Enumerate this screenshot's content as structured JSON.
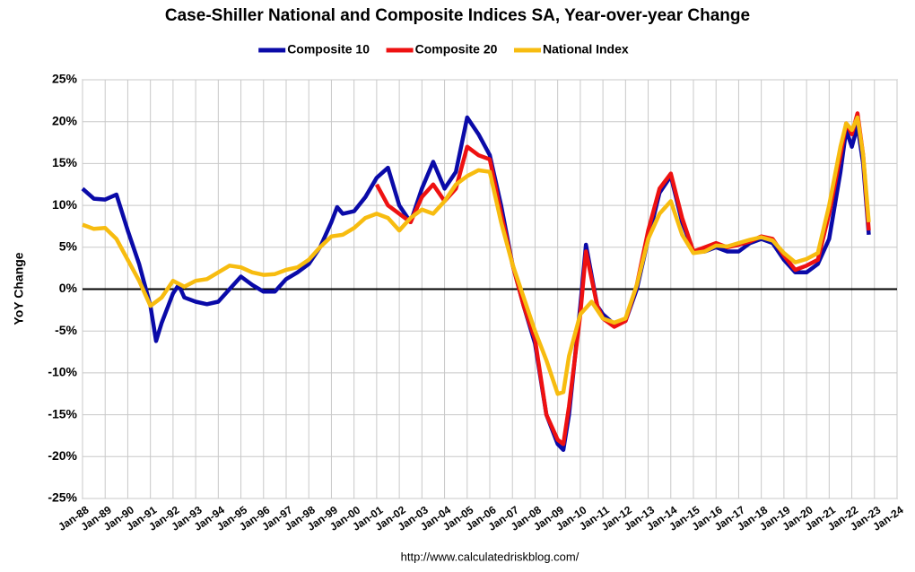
{
  "chart_data": {
    "type": "line",
    "title": "Case-Shiller National and Composite Indices SA, Year-over-year Change",
    "y_label": "YoY Change",
    "source": "http://www.calculatedriskblog.com/",
    "grid": true,
    "legend": "top",
    "xlim": [
      1988,
      2024
    ],
    "ylim": [
      -25,
      25
    ],
    "xticks": [
      {
        "value": 1988,
        "label": "Jan-88"
      },
      {
        "value": 1989,
        "label": "Jan-89"
      },
      {
        "value": 1990,
        "label": "Jan-90"
      },
      {
        "value": 1991,
        "label": "Jan-91"
      },
      {
        "value": 1992,
        "label": "Jan-92"
      },
      {
        "value": 1993,
        "label": "Jan-93"
      },
      {
        "value": 1994,
        "label": "Jan-94"
      },
      {
        "value": 1995,
        "label": "Jan-95"
      },
      {
        "value": 1996,
        "label": "Jan-96"
      },
      {
        "value": 1997,
        "label": "Jan-97"
      },
      {
        "value": 1998,
        "label": "Jan-98"
      },
      {
        "value": 1999,
        "label": "Jan-99"
      },
      {
        "value": 2000,
        "label": "Jan-00"
      },
      {
        "value": 2001,
        "label": "Jan-01"
      },
      {
        "value": 2002,
        "label": "Jan-02"
      },
      {
        "value": 2003,
        "label": "Jan-03"
      },
      {
        "value": 2004,
        "label": "Jan-04"
      },
      {
        "value": 2005,
        "label": "Jan-05"
      },
      {
        "value": 2006,
        "label": "Jan-06"
      },
      {
        "value": 2007,
        "label": "Jan-07"
      },
      {
        "value": 2008,
        "label": "Jan-08"
      },
      {
        "value": 2009,
        "label": "Jan-09"
      },
      {
        "value": 2010,
        "label": "Jan-10"
      },
      {
        "value": 2011,
        "label": "Jan-11"
      },
      {
        "value": 2012,
        "label": "Jan-12"
      },
      {
        "value": 2013,
        "label": "Jan-13"
      },
      {
        "value": 2014,
        "label": "Jan-14"
      },
      {
        "value": 2015,
        "label": "Jan-15"
      },
      {
        "value": 2016,
        "label": "Jan-16"
      },
      {
        "value": 2017,
        "label": "Jan-17"
      },
      {
        "value": 2018,
        "label": "Jan-18"
      },
      {
        "value": 2019,
        "label": "Jan-19"
      },
      {
        "value": 2020,
        "label": "Jan-20"
      },
      {
        "value": 2021,
        "label": "Jan-21"
      },
      {
        "value": 2022,
        "label": "Jan-22"
      },
      {
        "value": 2023,
        "label": "Jan-23"
      },
      {
        "value": 2024,
        "label": "Jan-24"
      }
    ],
    "yticks": [
      {
        "value": 25,
        "label": "25%"
      },
      {
        "value": 20,
        "label": "20%"
      },
      {
        "value": 15,
        "label": "15%"
      },
      {
        "value": 10,
        "label": "10%"
      },
      {
        "value": 5,
        "label": "5%"
      },
      {
        "value": 0,
        "label": "0%"
      },
      {
        "value": -5,
        "label": "-5%"
      },
      {
        "value": -10,
        "label": "-10%"
      },
      {
        "value": -15,
        "label": "-15%"
      },
      {
        "value": -20,
        "label": "-20%"
      },
      {
        "value": -25,
        "label": "-25%"
      }
    ],
    "series": [
      {
        "name": "Composite 10",
        "color": "#0a0aa8",
        "x": [
          1988,
          1988.5,
          1989,
          1989.5,
          1990,
          1990.5,
          1991,
          1991.25,
          1991.5,
          1992,
          1992.25,
          1992.5,
          1993,
          1993.5,
          1994,
          1994.5,
          1995,
          1995.5,
          1996,
          1996.5,
          1997,
          1997.5,
          1998,
          1998.5,
          1999,
          1999.25,
          1999.5,
          2000,
          2000.5,
          2001,
          2001.5,
          2002,
          2002.5,
          2003,
          2003.5,
          2004,
          2004.5,
          2005,
          2005.5,
          2006,
          2006.5,
          2007,
          2007.5,
          2008,
          2008.5,
          2009,
          2009.25,
          2009.5,
          2010,
          2010.25,
          2010.75,
          2011,
          2011.5,
          2012,
          2012.5,
          2013,
          2013.5,
          2014,
          2014.5,
          2015,
          2015.5,
          2016,
          2016.5,
          2017,
          2017.5,
          2018,
          2018.5,
          2019,
          2019.5,
          2020,
          2020.5,
          2021,
          2021.5,
          2021.75,
          2022,
          2022.25,
          2022.5,
          2022.75
        ],
        "values": [
          12,
          10.8,
          10.7,
          11.3,
          7,
          3,
          -2,
          -6.2,
          -4,
          -0.5,
          0.5,
          -1,
          -1.5,
          -1.8,
          -1.5,
          0,
          1.5,
          0.5,
          -0.3,
          -0.3,
          1.2,
          2,
          3,
          5,
          8,
          9.8,
          9,
          9.3,
          11,
          13.3,
          14.5,
          10,
          8,
          12,
          15.2,
          12,
          14,
          20.5,
          18.5,
          16,
          10,
          3,
          -2,
          -6.5,
          -15,
          -18.5,
          -19.2,
          -15,
          -2,
          5.3,
          -2,
          -3,
          -4.2,
          -3.8,
          0,
          6,
          11.5,
          13.5,
          8,
          4.5,
          4.5,
          5,
          4.5,
          4.5,
          5.5,
          6,
          5.5,
          3.5,
          2,
          2,
          3,
          6,
          14,
          19,
          17,
          19.5,
          15,
          6.5
        ]
      },
      {
        "name": "Composite 20",
        "color": "#ee1111",
        "x": [
          2001,
          2001.5,
          2002,
          2002.5,
          2003,
          2003.5,
          2004,
          2004.5,
          2005,
          2005.5,
          2006,
          2006.5,
          2007,
          2007.5,
          2008,
          2008.5,
          2009,
          2009.25,
          2009.5,
          2010,
          2010.25,
          2010.75,
          2011,
          2011.5,
          2012,
          2012.5,
          2013,
          2013.5,
          2014,
          2014.5,
          2015,
          2015.5,
          2016,
          2016.5,
          2017,
          2017.5,
          2018,
          2018.5,
          2019,
          2019.5,
          2020,
          2020.5,
          2021,
          2021.5,
          2021.75,
          2022,
          2022.25,
          2022.5,
          2022.75
        ],
        "values": [
          12.5,
          10,
          9,
          8,
          11,
          12.5,
          10.5,
          12,
          17,
          16,
          15.5,
          9,
          3,
          -2,
          -6,
          -15,
          -18,
          -18.5,
          -14,
          -3,
          4.5,
          -2,
          -3.5,
          -4.5,
          -3.8,
          0.5,
          7,
          12,
          13.8,
          8.5,
          4.5,
          5,
          5.5,
          5,
          5.3,
          5.7,
          6.3,
          6,
          4,
          2.3,
          2.8,
          3.5,
          9,
          16,
          19.8,
          18.5,
          21,
          16,
          7
        ]
      },
      {
        "name": "National Index",
        "color": "#f7bc10",
        "x": [
          1988,
          1988.5,
          1989,
          1989.5,
          1990,
          1990.5,
          1991,
          1991.5,
          1992,
          1992.5,
          1993,
          1993.5,
          1994,
          1994.5,
          1995,
          1995.5,
          1996,
          1996.5,
          1997,
          1997.5,
          1998,
          1998.5,
          1999,
          1999.5,
          2000,
          2000.5,
          2001,
          2001.5,
          2002,
          2002.5,
          2003,
          2003.5,
          2004,
          2004.5,
          2005,
          2005.5,
          2006,
          2006.5,
          2007,
          2007.5,
          2008,
          2008.5,
          2009,
          2009.25,
          2009.5,
          2010,
          2010.5,
          2011,
          2011.5,
          2012,
          2012.5,
          2013,
          2013.5,
          2014,
          2014.5,
          2015,
          2015.5,
          2016,
          2016.5,
          2017,
          2017.5,
          2018,
          2018.5,
          2019,
          2019.5,
          2020,
          2020.5,
          2021,
          2021.5,
          2021.75,
          2022,
          2022.25,
          2022.5,
          2022.75
        ],
        "values": [
          7.7,
          7.2,
          7.3,
          6,
          3.5,
          1,
          -2,
          -1,
          1,
          0.3,
          1,
          1.2,
          2,
          2.8,
          2.6,
          2,
          1.7,
          1.8,
          2.3,
          2.6,
          3.5,
          5,
          6.3,
          6.5,
          7.3,
          8.5,
          9,
          8.5,
          7,
          8.5,
          9.5,
          9,
          10.5,
          12.5,
          13.5,
          14.2,
          14,
          8,
          3,
          -1,
          -5,
          -8.5,
          -12.5,
          -12.3,
          -8,
          -3,
          -1.5,
          -3.5,
          -4,
          -3.5,
          0.5,
          6,
          9,
          10.5,
          6.5,
          4.3,
          4.5,
          5.2,
          5.1,
          5.5,
          5.9,
          6.2,
          5.8,
          4.3,
          3.2,
          3.6,
          4.3,
          10,
          17,
          19.8,
          19,
          20.5,
          16,
          8
        ]
      }
    ]
  }
}
